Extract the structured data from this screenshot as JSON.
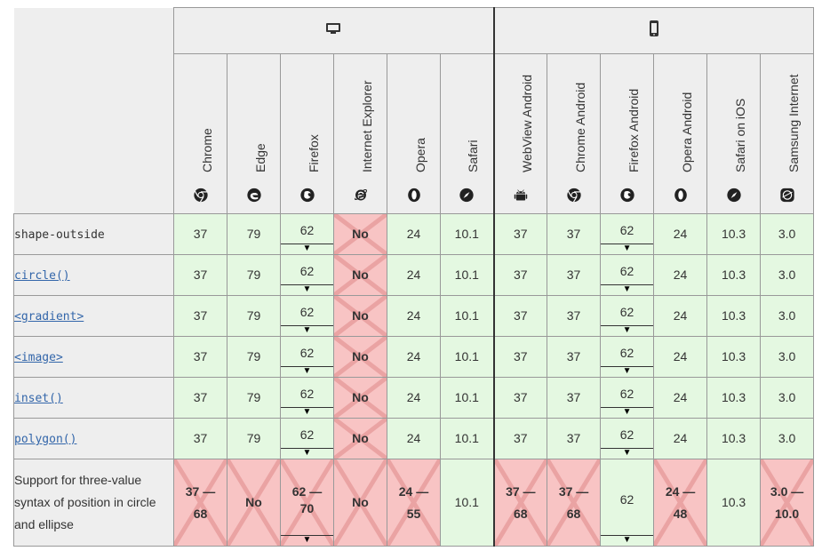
{
  "platforms": {
    "desktop": {
      "icon": "desktop-icon"
    },
    "mobile": {
      "icon": "mobile-icon"
    }
  },
  "browsers": [
    {
      "name": "Chrome",
      "icon": "chrome-icon"
    },
    {
      "name": "Edge",
      "icon": "edge-icon"
    },
    {
      "name": "Firefox",
      "icon": "firefox-icon"
    },
    {
      "name": "Internet Explorer",
      "icon": "internet-explorer-icon"
    },
    {
      "name": "Opera",
      "icon": "opera-icon"
    },
    {
      "name": "Safari",
      "icon": "safari-icon"
    },
    {
      "name": "WebView Android",
      "icon": "android-icon"
    },
    {
      "name": "Chrome Android",
      "icon": "chrome-icon"
    },
    {
      "name": "Firefox Android",
      "icon": "firefox-icon"
    },
    {
      "name": "Opera Android",
      "icon": "opera-icon"
    },
    {
      "name": "Safari on iOS",
      "icon": "safari-icon"
    },
    {
      "name": "Samsung Internet",
      "icon": "samsung-internet-icon"
    }
  ],
  "features": [
    {
      "name": "shape-outside",
      "link": false,
      "cells": [
        {
          "value": "37",
          "support": "yes"
        },
        {
          "value": "79",
          "support": "yes"
        },
        {
          "value": "62",
          "support": "yes",
          "notes": "▼"
        },
        {
          "value": "No",
          "support": "no"
        },
        {
          "value": "24",
          "support": "yes"
        },
        {
          "value": "10.1",
          "support": "yes"
        },
        {
          "value": "37",
          "support": "yes"
        },
        {
          "value": "37",
          "support": "yes"
        },
        {
          "value": "62",
          "support": "yes",
          "notes": "▼"
        },
        {
          "value": "24",
          "support": "yes"
        },
        {
          "value": "10.3",
          "support": "yes"
        },
        {
          "value": "3.0",
          "support": "yes"
        }
      ]
    },
    {
      "name": "circle()",
      "link": true,
      "cells": [
        {
          "value": "37",
          "support": "yes"
        },
        {
          "value": "79",
          "support": "yes"
        },
        {
          "value": "62",
          "support": "yes",
          "notes": "▼"
        },
        {
          "value": "No",
          "support": "no"
        },
        {
          "value": "24",
          "support": "yes"
        },
        {
          "value": "10.1",
          "support": "yes"
        },
        {
          "value": "37",
          "support": "yes"
        },
        {
          "value": "37",
          "support": "yes"
        },
        {
          "value": "62",
          "support": "yes",
          "notes": "▼"
        },
        {
          "value": "24",
          "support": "yes"
        },
        {
          "value": "10.3",
          "support": "yes"
        },
        {
          "value": "3.0",
          "support": "yes"
        }
      ]
    },
    {
      "name": "<gradient>",
      "link": true,
      "cells": [
        {
          "value": "37",
          "support": "yes"
        },
        {
          "value": "79",
          "support": "yes"
        },
        {
          "value": "62",
          "support": "yes",
          "notes": "▼"
        },
        {
          "value": "No",
          "support": "no"
        },
        {
          "value": "24",
          "support": "yes"
        },
        {
          "value": "10.1",
          "support": "yes"
        },
        {
          "value": "37",
          "support": "yes"
        },
        {
          "value": "37",
          "support": "yes"
        },
        {
          "value": "62",
          "support": "yes",
          "notes": "▼"
        },
        {
          "value": "24",
          "support": "yes"
        },
        {
          "value": "10.3",
          "support": "yes"
        },
        {
          "value": "3.0",
          "support": "yes"
        }
      ]
    },
    {
      "name": "<image>",
      "link": true,
      "cells": [
        {
          "value": "37",
          "support": "yes"
        },
        {
          "value": "79",
          "support": "yes"
        },
        {
          "value": "62",
          "support": "yes",
          "notes": "▼"
        },
        {
          "value": "No",
          "support": "no"
        },
        {
          "value": "24",
          "support": "yes"
        },
        {
          "value": "10.1",
          "support": "yes"
        },
        {
          "value": "37",
          "support": "yes"
        },
        {
          "value": "37",
          "support": "yes"
        },
        {
          "value": "62",
          "support": "yes",
          "notes": "▼"
        },
        {
          "value": "24",
          "support": "yes"
        },
        {
          "value": "10.3",
          "support": "yes"
        },
        {
          "value": "3.0",
          "support": "yes"
        }
      ]
    },
    {
      "name": "inset()",
      "link": true,
      "cells": [
        {
          "value": "37",
          "support": "yes"
        },
        {
          "value": "79",
          "support": "yes"
        },
        {
          "value": "62",
          "support": "yes",
          "notes": "▼"
        },
        {
          "value": "No",
          "support": "no"
        },
        {
          "value": "24",
          "support": "yes"
        },
        {
          "value": "10.1",
          "support": "yes"
        },
        {
          "value": "37",
          "support": "yes"
        },
        {
          "value": "37",
          "support": "yes"
        },
        {
          "value": "62",
          "support": "yes",
          "notes": "▼"
        },
        {
          "value": "24",
          "support": "yes"
        },
        {
          "value": "10.3",
          "support": "yes"
        },
        {
          "value": "3.0",
          "support": "yes"
        }
      ]
    },
    {
      "name": "polygon()",
      "link": true,
      "cells": [
        {
          "value": "37",
          "support": "yes"
        },
        {
          "value": "79",
          "support": "yes"
        },
        {
          "value": "62",
          "support": "yes",
          "notes": "▼"
        },
        {
          "value": "No",
          "support": "no"
        },
        {
          "value": "24",
          "support": "yes"
        },
        {
          "value": "10.1",
          "support": "yes"
        },
        {
          "value": "37",
          "support": "yes"
        },
        {
          "value": "37",
          "support": "yes"
        },
        {
          "value": "62",
          "support": "yes",
          "notes": "▼"
        },
        {
          "value": "24",
          "support": "yes"
        },
        {
          "value": "10.3",
          "support": "yes"
        },
        {
          "value": "3.0",
          "support": "yes"
        }
      ]
    },
    {
      "name": "Support for three-value syntax of position in circle and ellipse",
      "link": false,
      "description": true,
      "cells": [
        {
          "value": "37 —",
          "value2": "68",
          "support": "partial"
        },
        {
          "value": "No",
          "support": "no"
        },
        {
          "value": "62 —",
          "value2": "70",
          "support": "partial",
          "notes": "▼"
        },
        {
          "value": "No",
          "support": "no"
        },
        {
          "value": "24 —",
          "value2": "55",
          "support": "partial"
        },
        {
          "value": "10.1",
          "support": "yes"
        },
        {
          "value": "37 —",
          "value2": "68",
          "support": "partial"
        },
        {
          "value": "37 —",
          "value2": "68",
          "support": "partial"
        },
        {
          "value": "62",
          "support": "yes",
          "notes": "▼"
        },
        {
          "value": "24 —",
          "value2": "48",
          "support": "partial"
        },
        {
          "value": "10.3",
          "support": "yes"
        },
        {
          "value": "3.0 —",
          "value2": "10.0",
          "support": "partial"
        }
      ]
    }
  ],
  "colors": {
    "yes": "#e4f8e1",
    "no": "#f8c4c4",
    "header": "#eeeeee",
    "link": "#3366aa"
  }
}
